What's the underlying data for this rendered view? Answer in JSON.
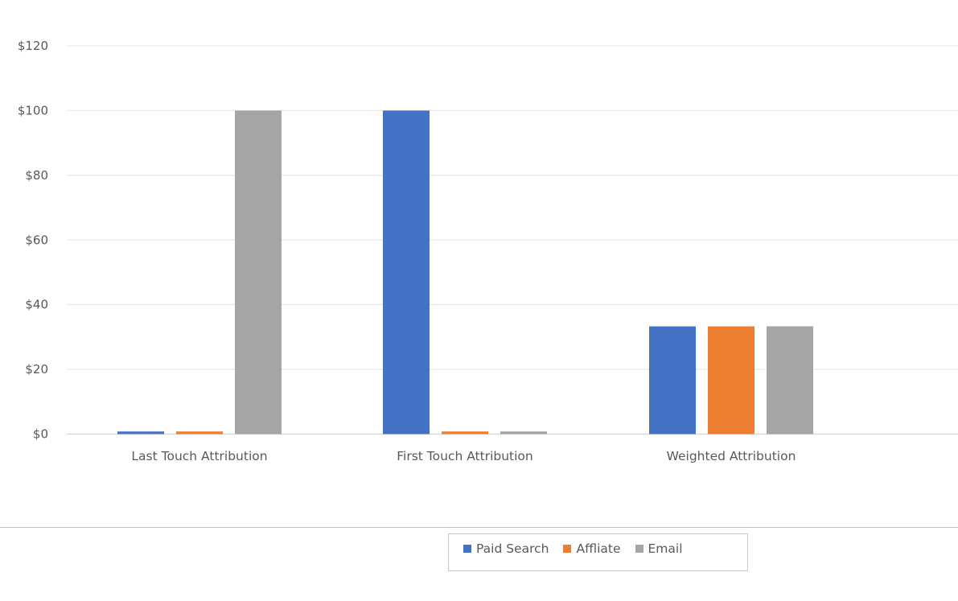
{
  "chart_data": {
    "type": "bar",
    "categories": [
      "Last Touch Attribution",
      "First Touch Attribution",
      "Weighted Attribution"
    ],
    "series": [
      {
        "name": "Paid Search",
        "color": "#4472C4",
        "values": [
          0.8,
          100,
          33.3
        ]
      },
      {
        "name": "Affliate",
        "color": "#ED7D31",
        "values": [
          0.8,
          0.8,
          33.3
        ]
      },
      {
        "name": "Email",
        "color": "#A5A5A5",
        "values": [
          100,
          0.8,
          33.3
        ]
      }
    ],
    "ylim": [
      0,
      120
    ],
    "yticks": [
      0,
      20,
      40,
      60,
      80,
      100,
      120
    ],
    "ytick_labels": [
      "$0",
      "$20",
      "$40",
      "$60",
      "$80",
      "$100",
      "$120"
    ],
    "grid": true,
    "legend_position": "bottom"
  }
}
